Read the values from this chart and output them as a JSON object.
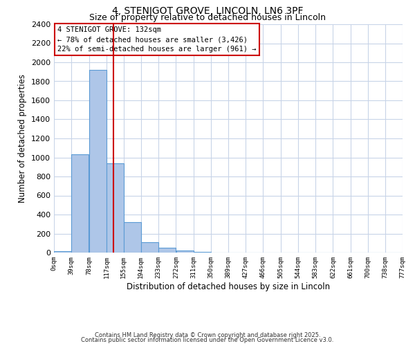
{
  "title1": "4, STENIGOT GROVE, LINCOLN, LN6 3PF",
  "title2": "Size of property relative to detached houses in Lincoln",
  "xlabel": "Distribution of detached houses by size in Lincoln",
  "ylabel": "Number of detached properties",
  "bar_left_edges": [
    0,
    39,
    78,
    117,
    155,
    194,
    233,
    272,
    311,
    350,
    389,
    427,
    466,
    505,
    544,
    583,
    622,
    661,
    700,
    738
  ],
  "bar_heights": [
    15,
    1030,
    1920,
    940,
    320,
    110,
    50,
    20,
    5,
    0,
    0,
    0,
    0,
    0,
    0,
    0,
    0,
    0,
    0,
    0
  ],
  "bin_width": 39,
  "tick_labels": [
    "0sqm",
    "39sqm",
    "78sqm",
    "117sqm",
    "155sqm",
    "194sqm",
    "233sqm",
    "272sqm",
    "311sqm",
    "350sqm",
    "389sqm",
    "427sqm",
    "466sqm",
    "505sqm",
    "544sqm",
    "583sqm",
    "622sqm",
    "661sqm",
    "700sqm",
    "738sqm",
    "777sqm"
  ],
  "ylim": [
    0,
    2400
  ],
  "yticks": [
    0,
    200,
    400,
    600,
    800,
    1000,
    1200,
    1400,
    1600,
    1800,
    2000,
    2200,
    2400
  ],
  "bar_color": "#aec6e8",
  "bar_edge_color": "#5b9bd5",
  "vline_x": 132,
  "vline_color": "#cc0000",
  "annotation_box_text": "4 STENIGOT GROVE: 132sqm\n← 78% of detached houses are smaller (3,426)\n22% of semi-detached houses are larger (961) →",
  "background_color": "#ffffff",
  "grid_color": "#c8d4e8",
  "footnote1": "Contains HM Land Registry data © Crown copyright and database right 2025.",
  "footnote2": "Contains public sector information licensed under the Open Government Licence v3.0."
}
